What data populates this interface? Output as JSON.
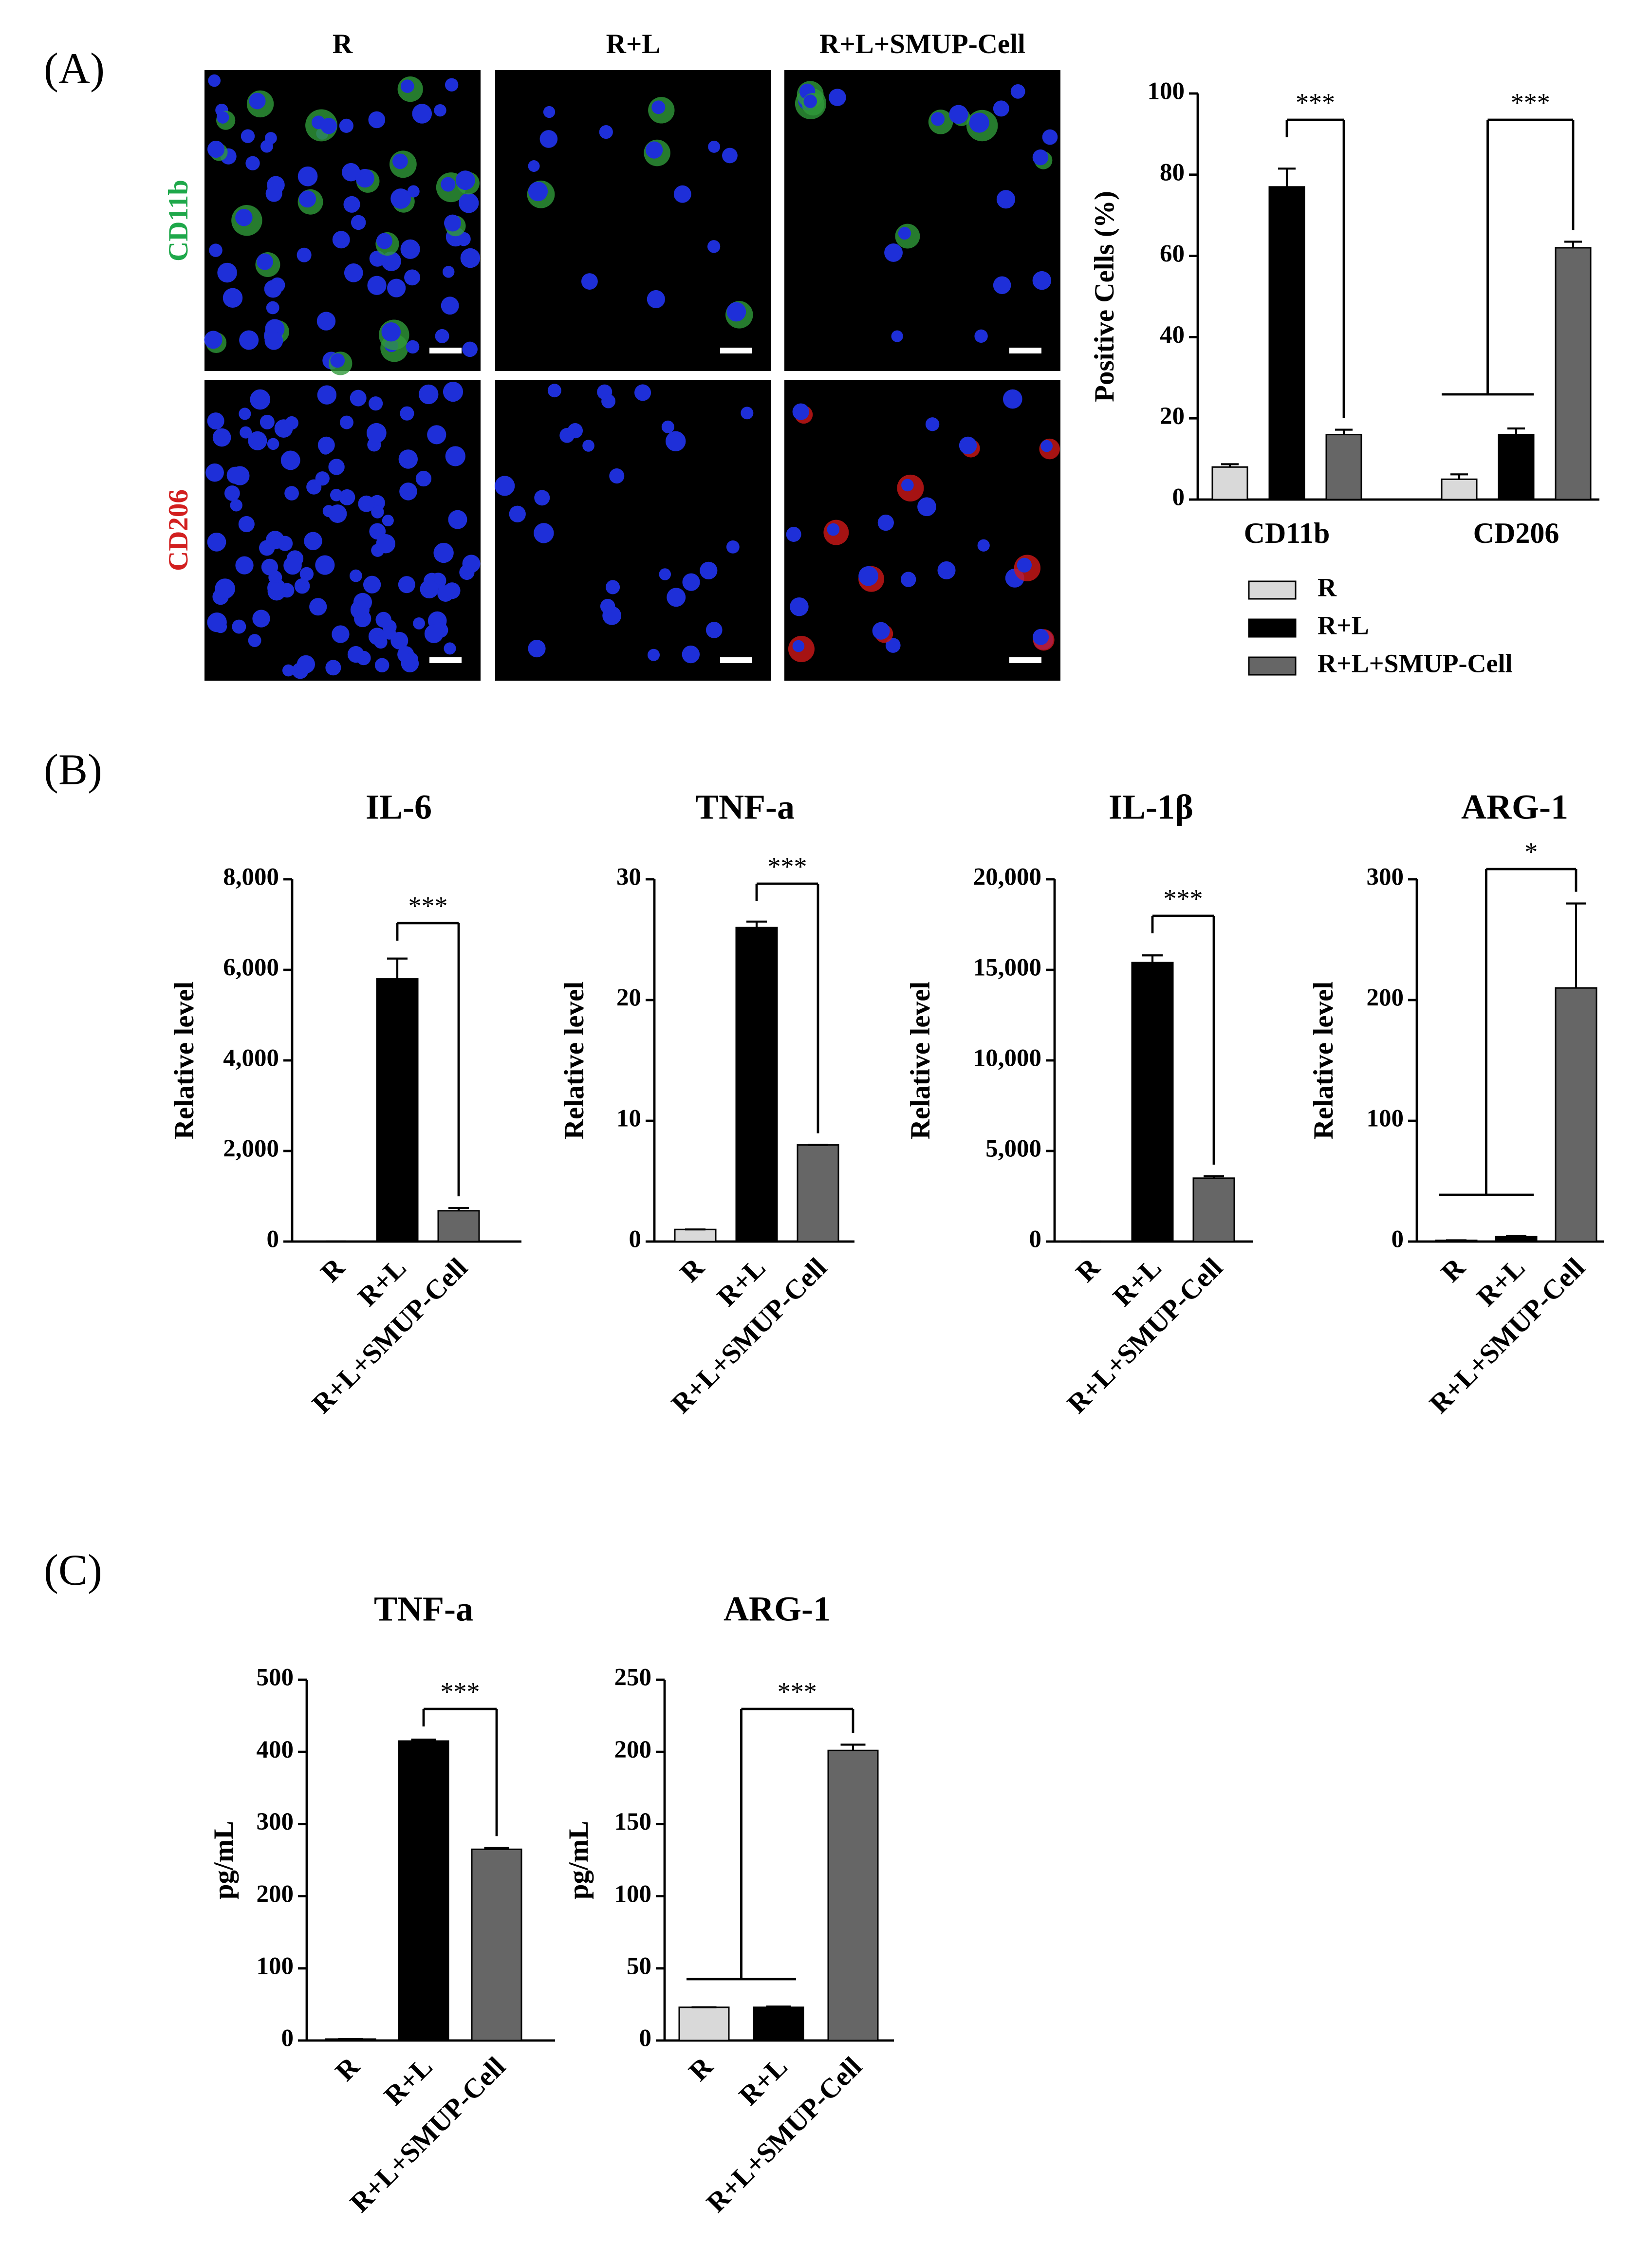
{
  "panels": {
    "A": "(A)",
    "B": "(B)",
    "C": "(C)"
  },
  "images": {
    "columns": [
      "R",
      "R+L",
      "R+L+SMUP-Cell"
    ],
    "rows": [
      "CD11b",
      "CD206"
    ],
    "row_colors": [
      "#1ea84a",
      "#d21f1f"
    ]
  },
  "chart_data": [
    {
      "type": "grouped-bar",
      "categories": [
        "CD11b",
        "CD206"
      ],
      "ylabel": "Positive Cells (%)",
      "series": [
        {
          "name": "R",
          "color": "#d9d9d9",
          "values": [
            8,
            5
          ],
          "errors": [
            0.7,
            1.2
          ]
        },
        {
          "name": "R+L",
          "color": "#000000",
          "values": [
            77,
            16
          ],
          "errors": [
            4.5,
            1.5
          ]
        },
        {
          "name": "R+L+SMUP-Cell",
          "color": "#666666",
          "values": [
            16,
            62
          ],
          "errors": [
            1.2,
            1.5
          ]
        }
      ],
      "ylim": [
        0,
        100
      ],
      "yticks": [
        0,
        20,
        40,
        60,
        80,
        100
      ],
      "annotations": [
        "***",
        "***"
      ]
    },
    {
      "type": "bar",
      "title": "IL-6",
      "ylabel": "Relative level",
      "categories": [
        "R",
        "R+L",
        "R+L+SMUP-Cell"
      ],
      "colors": [
        "#d9d9d9",
        "#000000",
        "#666666"
      ],
      "values": [
        1,
        5800,
        680
      ],
      "errors": [
        0,
        450,
        60
      ],
      "ylim": [
        0,
        8000
      ],
      "yticks": [
        0,
        {
          "value": 2000,
          "label": "2,000"
        },
        {
          "value": 4000,
          "label": "4,000"
        },
        {
          "value": 6000,
          "label": "6,000"
        },
        {
          "value": 8000,
          "label": "8,000"
        }
      ],
      "annotations": [
        "***"
      ]
    },
    {
      "type": "bar",
      "title": "TNF-a",
      "ylabel": "Relative level",
      "categories": [
        "R",
        "R+L",
        "R+L+SMUP-Cell"
      ],
      "colors": [
        "#d9d9d9",
        "#000000",
        "#666666"
      ],
      "values": [
        1,
        26,
        8
      ],
      "errors": [
        0,
        0.5,
        0
      ],
      "ylim": [
        0,
        30
      ],
      "yticks": [
        0,
        10,
        20,
        30
      ],
      "annotations": [
        "***"
      ]
    },
    {
      "type": "bar",
      "title": "IL-1β",
      "ylabel": "Relative level",
      "categories": [
        "R",
        "R+L",
        "R+L+SMUP-Cell"
      ],
      "colors": [
        "#d9d9d9",
        "#000000",
        "#666666"
      ],
      "values": [
        1,
        15400,
        3500
      ],
      "errors": [
        0,
        400,
        100
      ],
      "ylim": [
        0,
        20000
      ],
      "yticks": [
        0,
        {
          "value": 5000,
          "label": "5,000"
        },
        {
          "value": 10000,
          "label": "10,000"
        },
        {
          "value": 15000,
          "label": "15,000"
        },
        {
          "value": 20000,
          "label": "20,000"
        }
      ],
      "annotations": [
        "***"
      ]
    },
    {
      "type": "bar",
      "title": "ARG-1",
      "ylabel": "Relative level",
      "categories": [
        "R",
        "R+L",
        "R+L+SMUP-Cell"
      ],
      "colors": [
        "#d9d9d9",
        "#000000",
        "#666666"
      ],
      "values": [
        1,
        4,
        210
      ],
      "errors": [
        0,
        0.5,
        70
      ],
      "ylim": [
        0,
        300
      ],
      "yticks": [
        0,
        100,
        200,
        300
      ],
      "annotations": [
        "*"
      ]
    },
    {
      "type": "bar",
      "title": "TNF-a",
      "ylabel": "pg/mL",
      "categories": [
        "R",
        "R+L",
        "R+L+SMUP-Cell"
      ],
      "colors": [
        "#d9d9d9",
        "#000000",
        "#666666"
      ],
      "values": [
        2,
        415,
        265
      ],
      "errors": [
        0,
        2,
        2
      ],
      "ylim": [
        0,
        500
      ],
      "yticks": [
        0,
        100,
        200,
        300,
        400,
        500
      ],
      "annotations": [
        "***"
      ]
    },
    {
      "type": "bar",
      "title": "ARG-1",
      "ylabel": "pg/mL",
      "categories": [
        "R",
        "R+L",
        "R+L+SMUP-Cell"
      ],
      "colors": [
        "#d9d9d9",
        "#000000",
        "#666666"
      ],
      "values": [
        23,
        23,
        201
      ],
      "errors": [
        0,
        0.5,
        4
      ],
      "ylim": [
        0,
        250
      ],
      "yticks": [
        0,
        50,
        100,
        150,
        200,
        250
      ],
      "annotations": [
        "***"
      ]
    }
  ]
}
